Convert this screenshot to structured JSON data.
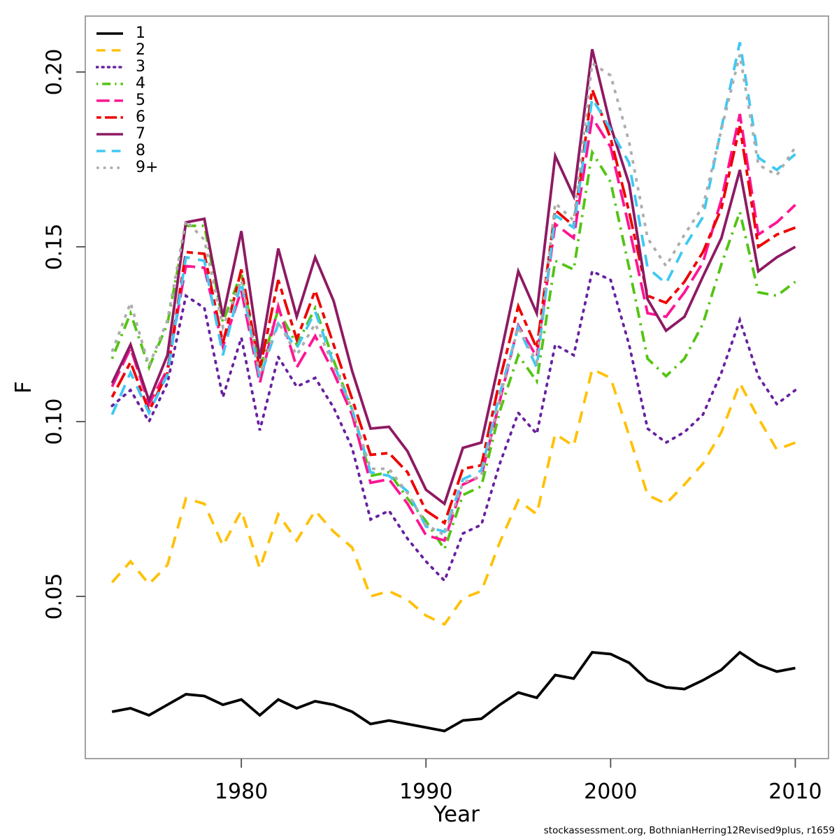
{
  "footer": {
    "text": "stockassessment.org, BothnianHerring12Revised9plus, r1659"
  },
  "chart_data": {
    "type": "line",
    "title": "",
    "xlabel": "Year",
    "ylabel": "F",
    "grid": false,
    "legend_position": "top-left",
    "frame_color": "#8C8C8C",
    "tick_color": "#4D4D4D",
    "xlim": [
      1971.55,
      2011.8
    ],
    "ylim": [
      0.0036,
      0.216
    ],
    "xticks": [
      1980,
      1990,
      2000,
      2010
    ],
    "xtick_labels": [
      "1980",
      "1990",
      "2000",
      "2010"
    ],
    "yticks": [
      0.05,
      0.1,
      0.15,
      0.2
    ],
    "ytick_labels": [
      "0.05",
      "0.10",
      "0.15",
      "0.20"
    ],
    "x": [
      1973,
      1974,
      1975,
      1976,
      1977,
      1978,
      1979,
      1980,
      1981,
      1982,
      1983,
      1984,
      1985,
      1986,
      1987,
      1988,
      1989,
      1990,
      1991,
      1992,
      1993,
      1994,
      1995,
      1996,
      1997,
      1998,
      1999,
      2000,
      2001,
      2002,
      2003,
      2004,
      2005,
      2006,
      2007,
      2008,
      2009,
      2010
    ],
    "series": [
      {
        "name": "1",
        "color": "#000000",
        "dash": "",
        "cap": "butt",
        "values": [
          0.017,
          0.018,
          0.016,
          0.019,
          0.022,
          0.0215,
          0.019,
          0.0205,
          0.016,
          0.0205,
          0.018,
          0.02,
          0.019,
          0.017,
          0.0135,
          0.0145,
          0.0135,
          0.0125,
          0.0115,
          0.0145,
          0.015,
          0.019,
          0.0225,
          0.021,
          0.0275,
          0.0265,
          0.034,
          0.0335,
          0.031,
          0.026,
          0.024,
          0.0235,
          0.026,
          0.029,
          0.034,
          0.0305,
          0.0285,
          0.0295
        ]
      },
      {
        "name": "2",
        "color": "#FFC107",
        "dash": "17,12",
        "cap": "butt",
        "values": [
          0.054,
          0.06,
          0.0535,
          0.059,
          0.078,
          0.0765,
          0.0645,
          0.0745,
          0.058,
          0.0735,
          0.066,
          0.0745,
          0.0685,
          0.064,
          0.05,
          0.0515,
          0.049,
          0.0445,
          0.042,
          0.0495,
          0.0515,
          0.0655,
          0.0775,
          0.0735,
          0.0965,
          0.093,
          0.115,
          0.1125,
          0.096,
          0.079,
          0.0765,
          0.082,
          0.088,
          0.097,
          0.111,
          0.101,
          0.092,
          0.094
        ]
      },
      {
        "name": "3",
        "color": "#67219F",
        "dash": "2.5,8.5",
        "cap": "round",
        "values": [
          0.1045,
          0.109,
          0.1,
          0.111,
          0.136,
          0.1325,
          0.107,
          0.124,
          0.0975,
          0.1185,
          0.11,
          0.1125,
          0.104,
          0.0925,
          0.072,
          0.0745,
          0.0665,
          0.06,
          0.0545,
          0.068,
          0.0705,
          0.088,
          0.1025,
          0.0965,
          0.122,
          0.119,
          0.143,
          0.1405,
          0.122,
          0.098,
          0.094,
          0.097,
          0.102,
          0.114,
          0.129,
          0.113,
          0.105,
          0.109
        ]
      },
      {
        "name": "4",
        "color": "#53C413",
        "dash": "3,8,16,8",
        "cap": "butt",
        "values": [
          0.118,
          0.131,
          0.1155,
          0.128,
          0.156,
          0.156,
          0.1285,
          0.1425,
          0.115,
          0.132,
          0.122,
          0.1325,
          0.1175,
          0.1035,
          0.0845,
          0.0855,
          0.078,
          0.0715,
          0.0635,
          0.079,
          0.0815,
          0.103,
          0.119,
          0.1115,
          0.146,
          0.1435,
          0.177,
          0.1685,
          0.144,
          0.118,
          0.113,
          0.118,
          0.128,
          0.145,
          0.16,
          0.137,
          0.136,
          0.14
        ]
      },
      {
        "name": "5",
        "color": "#FF1493",
        "dash": "25,9",
        "cap": "butt",
        "values": [
          0.11,
          0.121,
          0.105,
          0.115,
          0.1445,
          0.144,
          0.1215,
          0.1375,
          0.111,
          0.133,
          0.1155,
          0.1245,
          0.114,
          0.102,
          0.0825,
          0.0835,
          0.0765,
          0.0675,
          0.066,
          0.082,
          0.0845,
          0.106,
          0.1275,
          0.1185,
          0.1565,
          0.1525,
          0.187,
          0.1785,
          0.1555,
          0.131,
          0.13,
          0.137,
          0.1455,
          0.1635,
          0.188,
          0.1535,
          0.157,
          0.162
        ]
      },
      {
        "name": "6",
        "color": "#EE0000",
        "dash": "9,7,23,7",
        "cap": "butt",
        "values": [
          0.107,
          0.117,
          0.103,
          0.114,
          0.1485,
          0.148,
          0.1225,
          0.1435,
          0.115,
          0.1405,
          0.1235,
          0.1375,
          0.122,
          0.1065,
          0.0905,
          0.091,
          0.0855,
          0.0745,
          0.071,
          0.0865,
          0.0875,
          0.112,
          0.133,
          0.121,
          0.1605,
          0.156,
          0.195,
          0.181,
          0.16,
          0.136,
          0.134,
          0.14,
          0.1485,
          0.161,
          0.1845,
          0.15,
          0.1535,
          0.1555
        ]
      },
      {
        "name": "7",
        "color": "#8E1A63",
        "dash": "",
        "cap": "butt",
        "values": [
          0.111,
          0.122,
          0.106,
          0.119,
          0.157,
          0.158,
          0.13,
          0.1545,
          0.118,
          0.1495,
          0.13,
          0.147,
          0.1345,
          0.1145,
          0.098,
          0.0985,
          0.0915,
          0.0805,
          0.0765,
          0.0925,
          0.094,
          0.118,
          0.143,
          0.131,
          0.176,
          0.1645,
          0.2065,
          0.1845,
          0.168,
          0.135,
          0.126,
          0.13,
          0.1415,
          0.1525,
          0.172,
          0.143,
          0.147,
          0.15
        ]
      },
      {
        "name": "8",
        "color": "#3FC8F4",
        "dash": "17,12",
        "cap": "butt",
        "values": [
          0.102,
          0.114,
          0.1025,
          0.1135,
          0.147,
          0.146,
          0.119,
          0.14,
          0.1125,
          0.128,
          0.121,
          0.1315,
          0.1165,
          0.1035,
          0.0855,
          0.0845,
          0.08,
          0.07,
          0.0685,
          0.0835,
          0.086,
          0.108,
          0.127,
          0.1155,
          0.159,
          0.1555,
          0.1925,
          0.1835,
          0.174,
          0.144,
          0.1395,
          0.15,
          0.1585,
          0.184,
          0.2085,
          0.1755,
          0.172,
          0.1765
        ]
      },
      {
        "name": "9+",
        "color": "#ADADAD",
        "dash": "5,8",
        "cap": "butt",
        "values": [
          0.12,
          0.134,
          0.116,
          0.129,
          0.1575,
          0.152,
          0.127,
          0.1405,
          0.1135,
          0.1285,
          0.119,
          0.128,
          0.116,
          0.1035,
          0.0865,
          0.0865,
          0.0795,
          0.0705,
          0.0675,
          0.0825,
          0.0845,
          0.107,
          0.127,
          0.117,
          0.1625,
          0.1575,
          0.2025,
          0.199,
          0.18,
          0.1525,
          0.1445,
          0.1535,
          0.1615,
          0.1835,
          0.205,
          0.1735,
          0.1705,
          0.1785
        ]
      }
    ]
  }
}
